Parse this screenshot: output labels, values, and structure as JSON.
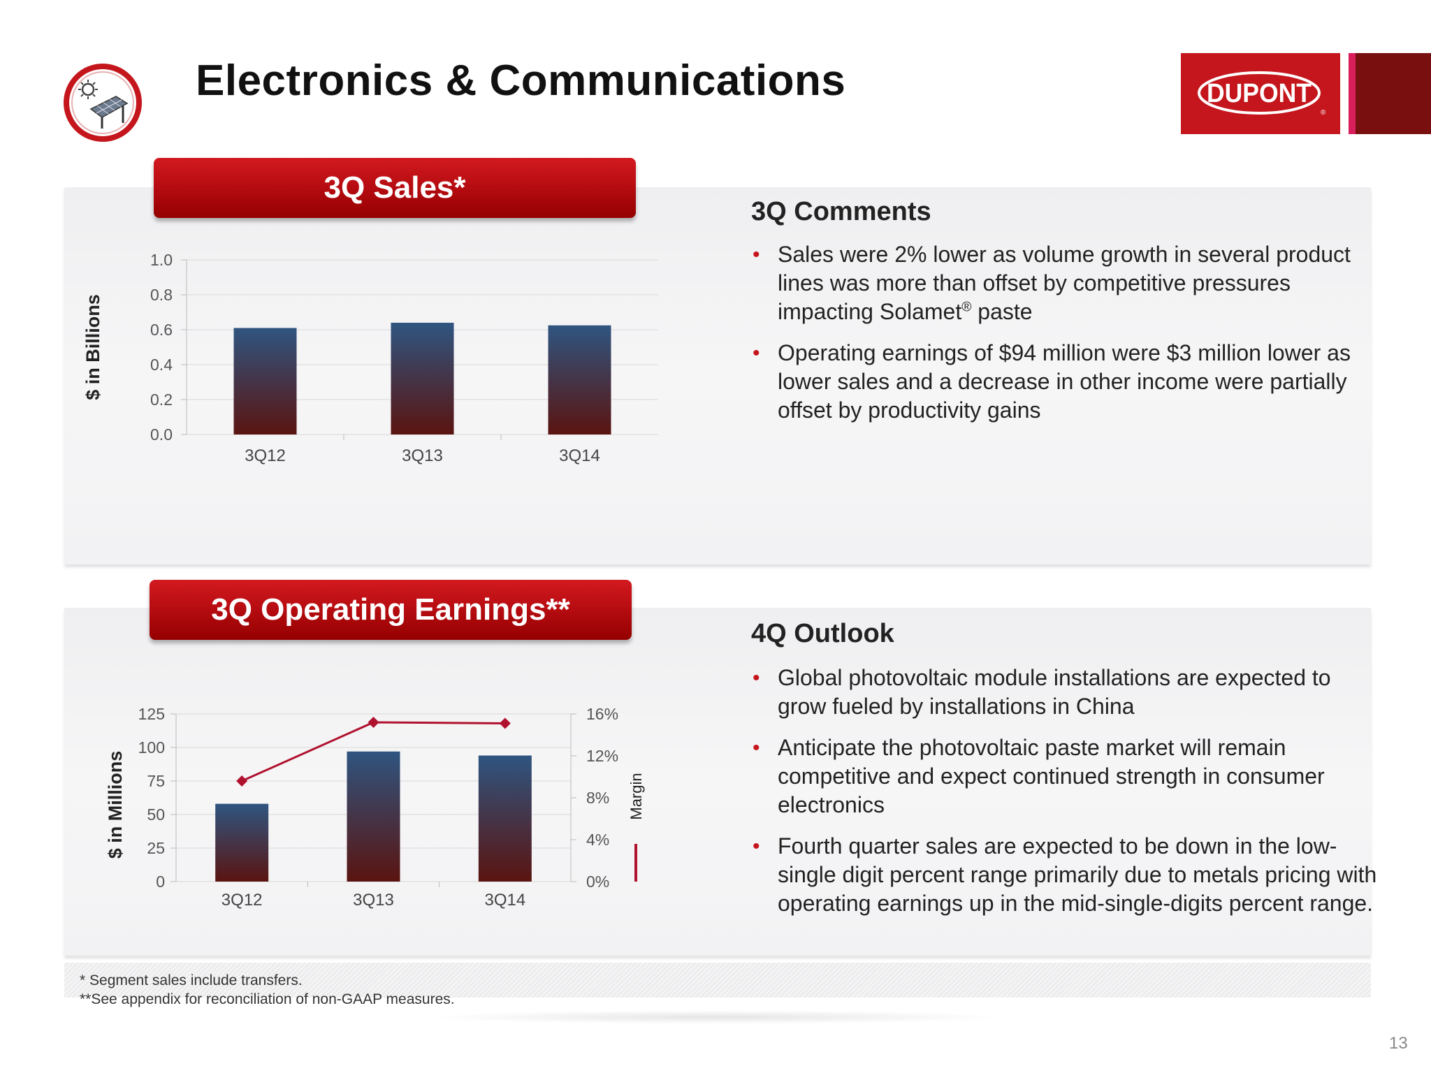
{
  "header": {
    "title": "Electronics & Communications",
    "logo_text": "DUPONT",
    "logo_mark": "®"
  },
  "colors": {
    "brand_red": "#c4161c",
    "bar_top": "#2f5580",
    "bar_bottom": "#5a1410",
    "margin_line": "#b0112e"
  },
  "icons": {
    "badge": "solar-panel-icon"
  },
  "sales_section": {
    "ribbon_title": "3Q Sales*"
  },
  "earnings_section": {
    "ribbon_title": "3Q Operating Earnings**"
  },
  "comments": {
    "heading": "3Q Comments",
    "bullets": [
      {
        "text_before": "Sales were 2% lower as volume growth in several product lines was more than offset by competitive pressures impacting Solamet",
        "sup": "®",
        "text_after": " paste"
      },
      {
        "text": "Operating earnings of $94 million were $3 million lower as lower sales and a decrease in other income were partially offset by productivity gains"
      }
    ]
  },
  "outlook": {
    "heading": "4Q Outlook",
    "bullets": [
      "Global photovoltaic module installations are expected to grow fueled by installations in China",
      "Anticipate the photovoltaic paste market will remain competitive and expect continued strength in consumer electronics",
      "Fourth quarter sales are expected to be down in the low-single digit percent range primarily due to metals pricing with operating earnings up in the mid-single-digits percent range."
    ]
  },
  "chart_data": [
    {
      "type": "bar",
      "title": "3Q Sales*",
      "categories": [
        "3Q12",
        "3Q13",
        "3Q14"
      ],
      "values": [
        0.61,
        0.64,
        0.625
      ],
      "ylabel": "$ in Billions",
      "xlabel": "",
      "ylim": [
        0,
        1.0
      ],
      "yticks": [
        "0.0",
        "0.2",
        "0.4",
        "0.6",
        "0.8",
        "1.0"
      ],
      "grid": true,
      "legend": "none"
    },
    {
      "type": "bar",
      "title": "3Q Operating Earnings**",
      "categories": [
        "3Q12",
        "3Q13",
        "3Q14"
      ],
      "series": [
        {
          "name": "",
          "type": "bar",
          "axis": "left",
          "values": [
            58,
            97,
            94
          ]
        },
        {
          "name": "Margin",
          "type": "line",
          "axis": "right",
          "values": [
            9.6,
            15.2,
            15.1
          ]
        }
      ],
      "ylabel": "$ in Millions",
      "y2label": "Margin",
      "xlabel": "",
      "ylim": [
        0,
        125
      ],
      "y2lim": [
        0,
        16
      ],
      "yticks": [
        "0",
        "25",
        "50",
        "75",
        "100",
        "125"
      ],
      "y2ticks": [
        "0%",
        "4%",
        "8%",
        "12%",
        "16%"
      ],
      "grid": true,
      "legend": "right"
    }
  ],
  "footer": {
    "footnote_1": "* Segment sales include transfers.",
    "footnote_2": "**See appendix for reconciliation of non-GAAP measures.",
    "page_number": "13"
  }
}
